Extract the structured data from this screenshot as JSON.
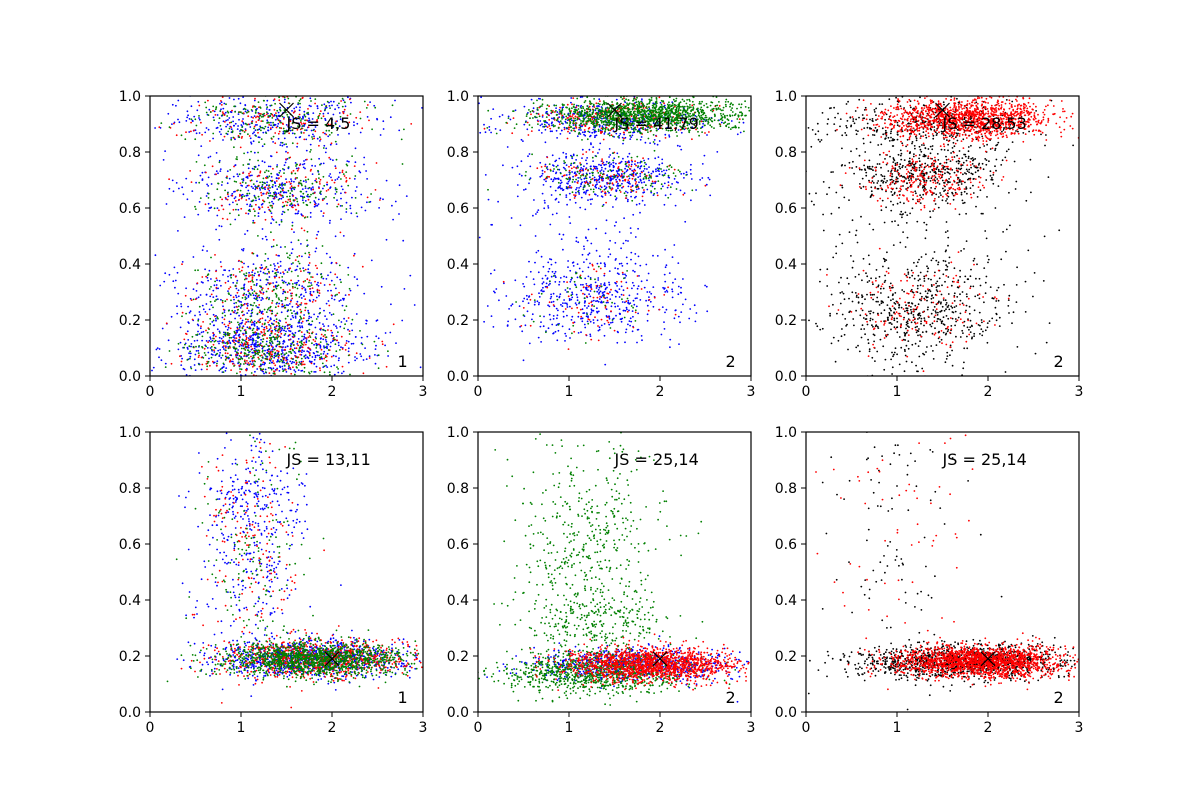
{
  "chart_data": [
    {
      "type": "scatter",
      "panel": "top-left",
      "xlim": [
        0,
        3
      ],
      "ylim": [
        0,
        1
      ],
      "xticks": [
        "0",
        "1",
        "2",
        "3"
      ],
      "yticks": [
        "0.0",
        "0.2",
        "0.4",
        "0.6",
        "0.8",
        "1.0"
      ],
      "annotation": "JS = 4,5",
      "corner_label": "1",
      "marker": {
        "x": 1.5,
        "y": 0.95
      },
      "series": [
        {
          "color": "#0000ff",
          "clusters": [
            {
              "cx": 1.3,
              "cy": 0.1,
              "sx": 0.55,
              "sy": 0.06,
              "n": 650
            },
            {
              "cx": 1.3,
              "cy": 0.3,
              "sx": 0.5,
              "sy": 0.08,
              "n": 300
            },
            {
              "cx": 1.4,
              "cy": 0.67,
              "sx": 0.55,
              "sy": 0.06,
              "n": 300
            },
            {
              "cx": 1.4,
              "cy": 0.92,
              "sx": 0.6,
              "sy": 0.05,
              "n": 300
            },
            {
              "cx": 1.4,
              "cy": 0.5,
              "sx": 0.8,
              "sy": 0.3,
              "n": 250
            }
          ]
        },
        {
          "color": "#ff0000",
          "clusters": [
            {
              "cx": 1.3,
              "cy": 0.1,
              "sx": 0.45,
              "sy": 0.06,
              "n": 300
            },
            {
              "cx": 1.3,
              "cy": 0.3,
              "sx": 0.4,
              "sy": 0.08,
              "n": 150
            },
            {
              "cx": 1.4,
              "cy": 0.67,
              "sx": 0.45,
              "sy": 0.06,
              "n": 150
            },
            {
              "cx": 1.4,
              "cy": 0.92,
              "sx": 0.5,
              "sy": 0.05,
              "n": 150
            }
          ]
        },
        {
          "color": "#008000",
          "clusters": [
            {
              "cx": 1.3,
              "cy": 0.1,
              "sx": 0.45,
              "sy": 0.06,
              "n": 350
            },
            {
              "cx": 1.3,
              "cy": 0.3,
              "sx": 0.4,
              "sy": 0.08,
              "n": 200
            },
            {
              "cx": 1.4,
              "cy": 0.67,
              "sx": 0.45,
              "sy": 0.06,
              "n": 200
            },
            {
              "cx": 1.4,
              "cy": 0.92,
              "sx": 0.5,
              "sy": 0.05,
              "n": 200
            }
          ]
        }
      ]
    },
    {
      "type": "scatter",
      "panel": "top-middle",
      "xlim": [
        0,
        3
      ],
      "ylim": [
        0,
        1
      ],
      "xticks": [
        "0",
        "1",
        "2",
        "3"
      ],
      "yticks": [
        "0.0",
        "0.2",
        "0.4",
        "0.6",
        "0.8",
        "1.0"
      ],
      "annotation": "JS = 41,79",
      "corner_label": "2",
      "marker": {
        "x": 1.5,
        "y": 0.95
      },
      "series": [
        {
          "color": "#0000ff",
          "clusters": [
            {
              "cx": 1.3,
              "cy": 0.27,
              "sx": 0.5,
              "sy": 0.08,
              "n": 450
            },
            {
              "cx": 1.4,
              "cy": 0.71,
              "sx": 0.45,
              "sy": 0.04,
              "n": 450
            },
            {
              "cx": 1.4,
              "cy": 0.91,
              "sx": 0.6,
              "sy": 0.04,
              "n": 400
            },
            {
              "cx": 1.2,
              "cy": 0.5,
              "sx": 0.5,
              "sy": 0.2,
              "n": 150
            }
          ]
        },
        {
          "color": "#ff0000",
          "clusters": [
            {
              "cx": 1.3,
              "cy": 0.27,
              "sx": 0.4,
              "sy": 0.07,
              "n": 80
            },
            {
              "cx": 1.4,
              "cy": 0.71,
              "sx": 0.4,
              "sy": 0.04,
              "n": 120
            },
            {
              "cx": 1.5,
              "cy": 0.92,
              "sx": 0.5,
              "sy": 0.035,
              "n": 250
            }
          ]
        },
        {
          "color": "#008000",
          "clusters": [
            {
              "cx": 1.4,
              "cy": 0.71,
              "sx": 0.45,
              "sy": 0.04,
              "n": 150
            },
            {
              "cx": 1.8,
              "cy": 0.93,
              "sx": 0.55,
              "sy": 0.03,
              "n": 1300
            },
            {
              "cx": 1.3,
              "cy": 0.27,
              "sx": 0.4,
              "sy": 0.07,
              "n": 50
            }
          ]
        }
      ]
    },
    {
      "type": "scatter",
      "panel": "top-right",
      "xlim": [
        0,
        3
      ],
      "ylim": [
        0,
        1
      ],
      "xticks": [
        "0",
        "1",
        "2",
        "3"
      ],
      "yticks": [
        "0.0",
        "0.2",
        "0.4",
        "0.6",
        "0.8",
        "1.0"
      ],
      "annotation": "JS = 28,53",
      "corner_label": "2",
      "marker": {
        "x": 1.5,
        "y": 0.95
      },
      "series": [
        {
          "color": "#000000",
          "clusters": [
            {
              "cx": 1.2,
              "cy": 0.22,
              "sx": 0.5,
              "sy": 0.1,
              "n": 550
            },
            {
              "cx": 1.3,
              "cy": 0.72,
              "sx": 0.5,
              "sy": 0.05,
              "n": 450
            },
            {
              "cx": 1.3,
              "cy": 0.9,
              "sx": 0.6,
              "sy": 0.05,
              "n": 400
            },
            {
              "cx": 1.2,
              "cy": 0.5,
              "sx": 0.6,
              "sy": 0.2,
              "n": 200
            }
          ]
        },
        {
          "color": "#ff0000",
          "clusters": [
            {
              "cx": 1.2,
              "cy": 0.25,
              "sx": 0.35,
              "sy": 0.08,
              "n": 150
            },
            {
              "cx": 1.3,
              "cy": 0.7,
              "sx": 0.35,
              "sy": 0.05,
              "n": 250
            },
            {
              "cx": 1.8,
              "cy": 0.92,
              "sx": 0.45,
              "sy": 0.035,
              "n": 1300
            }
          ]
        }
      ]
    },
    {
      "type": "scatter",
      "panel": "bottom-left",
      "xlim": [
        0,
        3
      ],
      "ylim": [
        0,
        1
      ],
      "xticks": [
        "0",
        "1",
        "2",
        "3"
      ],
      "yticks": [
        "0.0",
        "0.2",
        "0.4",
        "0.6",
        "0.8",
        "1.0"
      ],
      "annotation": "JS = 13,11",
      "corner_label": "1",
      "marker": {
        "x": 2.0,
        "y": 0.19
      },
      "series": [
        {
          "color": "#0000ff",
          "clusters": [
            {
              "cx": 1.8,
              "cy": 0.19,
              "sx": 0.55,
              "sy": 0.035,
              "n": 900
            },
            {
              "cx": 1.1,
              "cy": 0.6,
              "sx": 0.3,
              "sy": 0.2,
              "n": 300
            },
            {
              "cx": 1.2,
              "cy": 0.78,
              "sx": 0.3,
              "sy": 0.05,
              "n": 100
            }
          ]
        },
        {
          "color": "#ff0000",
          "clusters": [
            {
              "cx": 1.8,
              "cy": 0.19,
              "sx": 0.55,
              "sy": 0.035,
              "n": 800
            },
            {
              "cx": 1.1,
              "cy": 0.6,
              "sx": 0.3,
              "sy": 0.2,
              "n": 150
            }
          ]
        },
        {
          "color": "#008000",
          "clusters": [
            {
              "cx": 1.8,
              "cy": 0.19,
              "sx": 0.5,
              "sy": 0.03,
              "n": 1300
            },
            {
              "cx": 1.1,
              "cy": 0.6,
              "sx": 0.3,
              "sy": 0.2,
              "n": 150
            }
          ]
        }
      ]
    },
    {
      "type": "scatter",
      "panel": "bottom-middle",
      "xlim": [
        0,
        3
      ],
      "ylim": [
        0,
        1
      ],
      "xticks": [
        "0",
        "1",
        "2",
        "3"
      ],
      "yticks": [
        "0.0",
        "0.2",
        "0.4",
        "0.6",
        "0.8",
        "1.0"
      ],
      "annotation": "JS = 25,14",
      "corner_label": "2",
      "marker": {
        "x": 2.0,
        "y": 0.19
      },
      "series": [
        {
          "color": "#0000ff",
          "clusters": [
            {
              "cx": 1.7,
              "cy": 0.17,
              "sx": 0.6,
              "sy": 0.03,
              "n": 700
            }
          ]
        },
        {
          "color": "#008000",
          "clusters": [
            {
              "cx": 1.3,
              "cy": 0.14,
              "sx": 0.5,
              "sy": 0.035,
              "n": 900
            },
            {
              "cx": 1.2,
              "cy": 0.55,
              "sx": 0.4,
              "sy": 0.22,
              "n": 550
            },
            {
              "cx": 1.3,
              "cy": 0.32,
              "sx": 0.4,
              "sy": 0.05,
              "n": 200
            }
          ]
        },
        {
          "color": "#ff0000",
          "clusters": [
            {
              "cx": 1.9,
              "cy": 0.17,
              "sx": 0.45,
              "sy": 0.03,
              "n": 1500
            }
          ]
        }
      ]
    },
    {
      "type": "scatter",
      "panel": "bottom-right",
      "xlim": [
        0,
        3
      ],
      "ylim": [
        0,
        1
      ],
      "xticks": [
        "0",
        "1",
        "2",
        "3"
      ],
      "yticks": [
        "0.0",
        "0.2",
        "0.4",
        "0.6",
        "0.8",
        "1.0"
      ],
      "annotation": "JS = 25,14",
      "corner_label": "2",
      "marker": {
        "x": 2.0,
        "y": 0.19
      },
      "series": [
        {
          "color": "#000000",
          "clusters": [
            {
              "cx": 1.7,
              "cy": 0.18,
              "sx": 0.6,
              "sy": 0.03,
              "n": 1200
            },
            {
              "cx": 1.0,
              "cy": 0.6,
              "sx": 0.4,
              "sy": 0.25,
              "n": 100
            }
          ]
        },
        {
          "color": "#ff0000",
          "clusters": [
            {
              "cx": 1.9,
              "cy": 0.18,
              "sx": 0.45,
              "sy": 0.028,
              "n": 1800
            },
            {
              "cx": 1.1,
              "cy": 0.6,
              "sx": 0.4,
              "sy": 0.25,
              "n": 60
            }
          ]
        }
      ]
    }
  ]
}
